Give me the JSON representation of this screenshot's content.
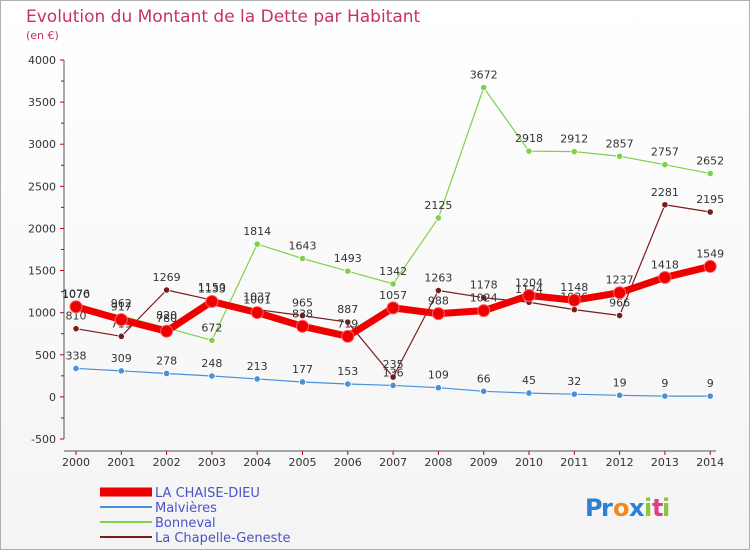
{
  "chart_data": {
    "type": "line",
    "title": "Evolution du Montant de la Dette par Habitant",
    "subtitle": "(en €)",
    "xlabel": "",
    "ylabel": "",
    "ylim": [
      -500,
      4000
    ],
    "yticks": [
      "4000",
      "3500",
      "3000",
      "2500",
      "2000",
      "1500",
      "1000",
      "500",
      "0",
      "-500"
    ],
    "grid": false,
    "legend_position": "bottom-left",
    "x": [
      "2000",
      "2001",
      "2002",
      "2003",
      "2004",
      "2005",
      "2006",
      "2007",
      "2008",
      "2009",
      "2010",
      "2011",
      "2012",
      "2013",
      "2014"
    ],
    "series": [
      {
        "name": "La Chapelle-Geneste",
        "color": "#7b1c1c",
        "values": [
          810,
          719,
          1269,
          1150,
          1037,
          965,
          887,
          235,
          1263,
          1178,
          1124,
          1036,
          966,
          2281,
          2195
        ],
        "labels": [
          "810",
          "719",
          "1269",
          "1150",
          "1037",
          "965",
          "887",
          "235",
          "1263",
          "1178",
          "1124",
          "1036",
          "966",
          "2281",
          "2195"
        ]
      },
      {
        "name": "Bonneval",
        "color": "#7fd14a",
        "values": [
          1076,
          962,
          820,
          672,
          1814,
          1643,
          1493,
          1342,
          2125,
          3672,
          2918,
          2912,
          2857,
          2757,
          2652
        ],
        "labels": [
          "1076",
          "962",
          "820",
          "672",
          "1814",
          "1643",
          "1493",
          "1342",
          "2125",
          "3672",
          "2918",
          "2912",
          "2857",
          "2757",
          "2652"
        ]
      },
      {
        "name": "Malvières",
        "color": "#4a90d9",
        "values": [
          338,
          309,
          278,
          248,
          213,
          177,
          153,
          136,
          109,
          66,
          45,
          32,
          19,
          9,
          9
        ],
        "labels": [
          "338",
          "309",
          "278",
          "248",
          "213",
          "177",
          "153",
          "136",
          "109",
          "66",
          "45",
          "32",
          "19",
          "9",
          "9"
        ]
      },
      {
        "name": "LA CHAISE-DIEU",
        "color": "#ee0000",
        "values": [
          1070,
          917,
          780,
          1133,
          1001,
          838,
          719,
          1057,
          988,
          1024,
          1204,
          1148,
          1237,
          1418,
          1549
        ],
        "labels": [
          "1070",
          "917",
          "780",
          "1133",
          "1001",
          "838",
          "719",
          "1057",
          "988",
          "1024",
          "1204",
          "1148",
          "1237",
          "1418",
          "1549"
        ]
      }
    ],
    "legend": [
      "LA CHAISE-DIEU",
      "Malvières",
      "Bonneval",
      "La Chapelle-Geneste"
    ]
  },
  "brand": {
    "text": "Proxiti"
  }
}
